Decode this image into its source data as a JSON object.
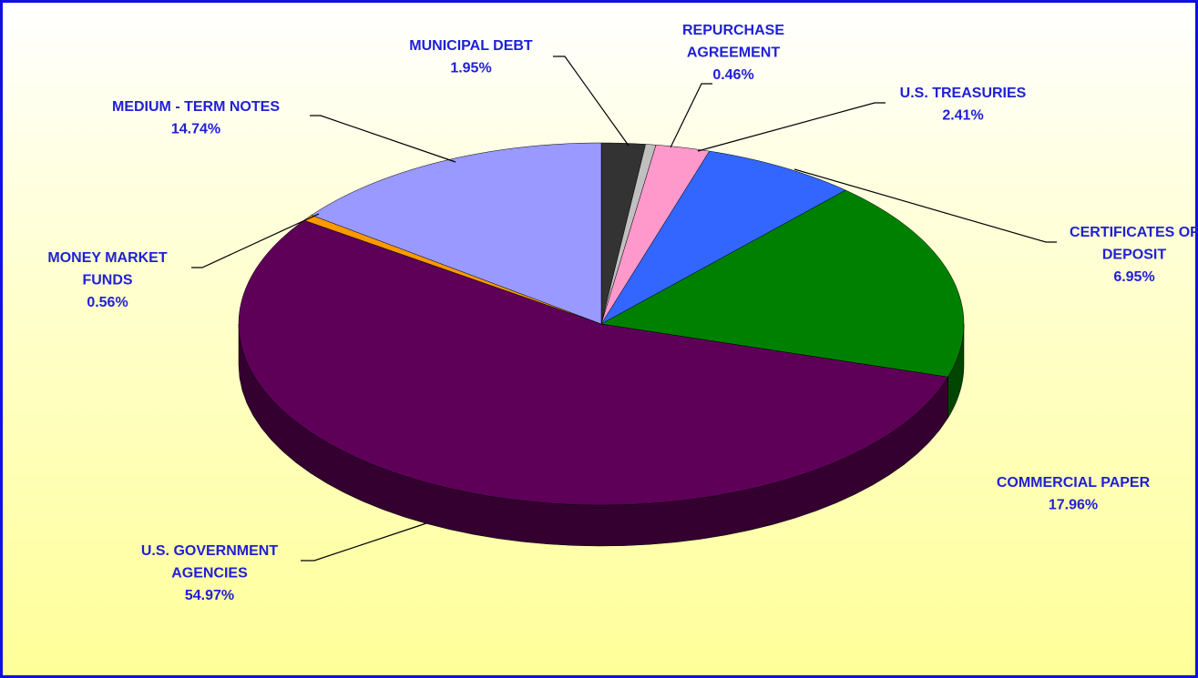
{
  "chart_data": {
    "type": "pie",
    "categories": [
      "MUNICIPAL DEBT",
      "REPURCHASE AGREEMENT",
      "U.S. TREASURIES",
      "CERTIFICATES OF DEPOSIT",
      "COMMERCIAL PAPER",
      "U.S. GOVERNMENT AGENCIES",
      "MONEY MARKET FUNDS",
      "MEDIUM - TERM NOTES"
    ],
    "values": [
      1.95,
      0.46,
      2.41,
      6.95,
      17.96,
      54.97,
      0.56,
      14.74
    ],
    "value_labels": [
      "1.95%",
      "0.46%",
      "2.41%",
      "6.95%",
      "17.96%",
      "54.97%",
      "0.56%",
      "14.74%"
    ],
    "colors": [
      "#333333",
      "#c0c0c0",
      "#ff99cc",
      "#3366ff",
      "#008000",
      "#5e0058",
      "#ff9900",
      "#9999ff"
    ]
  }
}
